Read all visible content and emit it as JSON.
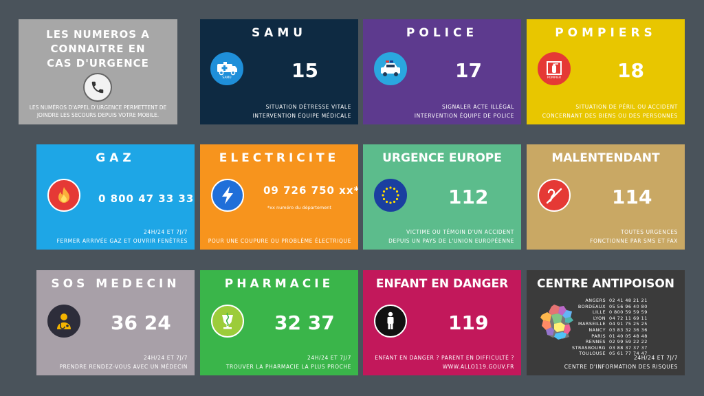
{
  "intro": {
    "title_lines": [
      "LES NUMEROS A",
      "CONNAITRE EN",
      "CAS D'URGENCE"
    ],
    "desc_lines": [
      "LES NUMÉROS D'APPEL D'URGENCE PERMETTENT DE",
      "JOINDRE LES SECOURS DEPUIS VOTRE MOBILE."
    ],
    "icon": "phone-icon"
  },
  "cards": {
    "samu": {
      "title": "SAMU",
      "number": "15",
      "desc": [
        "SITUATION DÉTRESSE VITALE",
        "INTERVENTION ÉQUIPE MÉDICALE"
      ],
      "icon_label": "SAMU",
      "color": "#0e2a42"
    },
    "police": {
      "title": "POLICE",
      "number": "17",
      "desc": [
        "SIGNALER ACTE ILLÉGAL",
        "INTERVENTION ÉQUIPE DE POLICE"
      ],
      "color": "#5d3a8e"
    },
    "pompiers": {
      "title": "POMPIERS",
      "number": "18",
      "desc": [
        "SITUATION DE PÉRIL OU ACCIDENT",
        "CONCERNANT DES BIENS OU DES PERSONNES"
      ],
      "icon_label": "POMPIER",
      "color": "#e8c600"
    },
    "gaz": {
      "title": "GAZ",
      "number": "0 800 47 33 33",
      "desc": [
        "24H/24 ET 7J/7",
        "FERMER ARRIVÉE GAZ ET OUVRIR FENÊTRES"
      ],
      "color": "#1ea6e6"
    },
    "electricite": {
      "title": "ELECTRICITE",
      "number": "09 726 750 xx*",
      "note": "*xx numéro du département",
      "desc": [
        "POUR UNE COUPURE OU PROBLÈME ÉLECTRIQUE"
      ],
      "color": "#f7941d"
    },
    "europe": {
      "title": "URGENCE EUROPE",
      "number": "112",
      "desc": [
        "VICTIME OU TÉMOIN D'UN ACCIDENT",
        "DEPUIS UN PAYS DE L'UNION EUROPÉENNE"
      ],
      "color": "#5cbc8c"
    },
    "malentendant": {
      "title": "MALENTENDANT",
      "number": "114",
      "desc": [
        "TOUTES URGENCES",
        "FONCTIONNE PAR SMS ET FAX"
      ],
      "color": "#c9a864"
    },
    "sos": {
      "title": "SOS MEDECIN",
      "number": "36 24",
      "desc": [
        "24H/24 ET 7J/7",
        "PRENDRE RENDEZ-VOUS AVEC UN MÉDECIN"
      ],
      "color": "#a8a0a8"
    },
    "pharmacie": {
      "title": "PHARMACIE",
      "number": "32 37",
      "desc": [
        "24H/24 ET 7J/7",
        "TROUVER LA PHARMACIE LA PLUS PROCHE"
      ],
      "color": "#3ab54a"
    },
    "enfant": {
      "title": "ENFANT EN DANGER",
      "number": "119",
      "desc": [
        "ENFANT EN DANGER ? PARENT EN DIFFICULTÉ ?",
        "WWW.ALLO119.GOUV.FR"
      ],
      "color": "#c2185b"
    },
    "antipoison": {
      "title": "CENTRE ANTIPOISON",
      "cities": [
        {
          "city": "ANGERS",
          "phone": "02 41 48 21 21"
        },
        {
          "city": "BORDEAUX",
          "phone": "05 56 96 40 80"
        },
        {
          "city": "LILLE",
          "phone": "0 800 59 59 59"
        },
        {
          "city": "LYON",
          "phone": "04 72 11 69 11"
        },
        {
          "city": "MARSEILLE",
          "phone": "04 91 75 25 25"
        },
        {
          "city": "NANCY",
          "phone": "03 83 32 36 36"
        },
        {
          "city": "PARIS",
          "phone": "01 40 05 48 48"
        },
        {
          "city": "RENNES",
          "phone": "02 99 59 22 22"
        },
        {
          "city": "STRASBOURG",
          "phone": "03 88 37 37 37"
        },
        {
          "city": "TOULOUSE",
          "phone": "05 61 77 74 47"
        }
      ],
      "desc": [
        "24H/24 ET 7J/7",
        "CENTRE D'INFORMATION DES RISQUES"
      ],
      "color": "#3b3b3b"
    }
  }
}
